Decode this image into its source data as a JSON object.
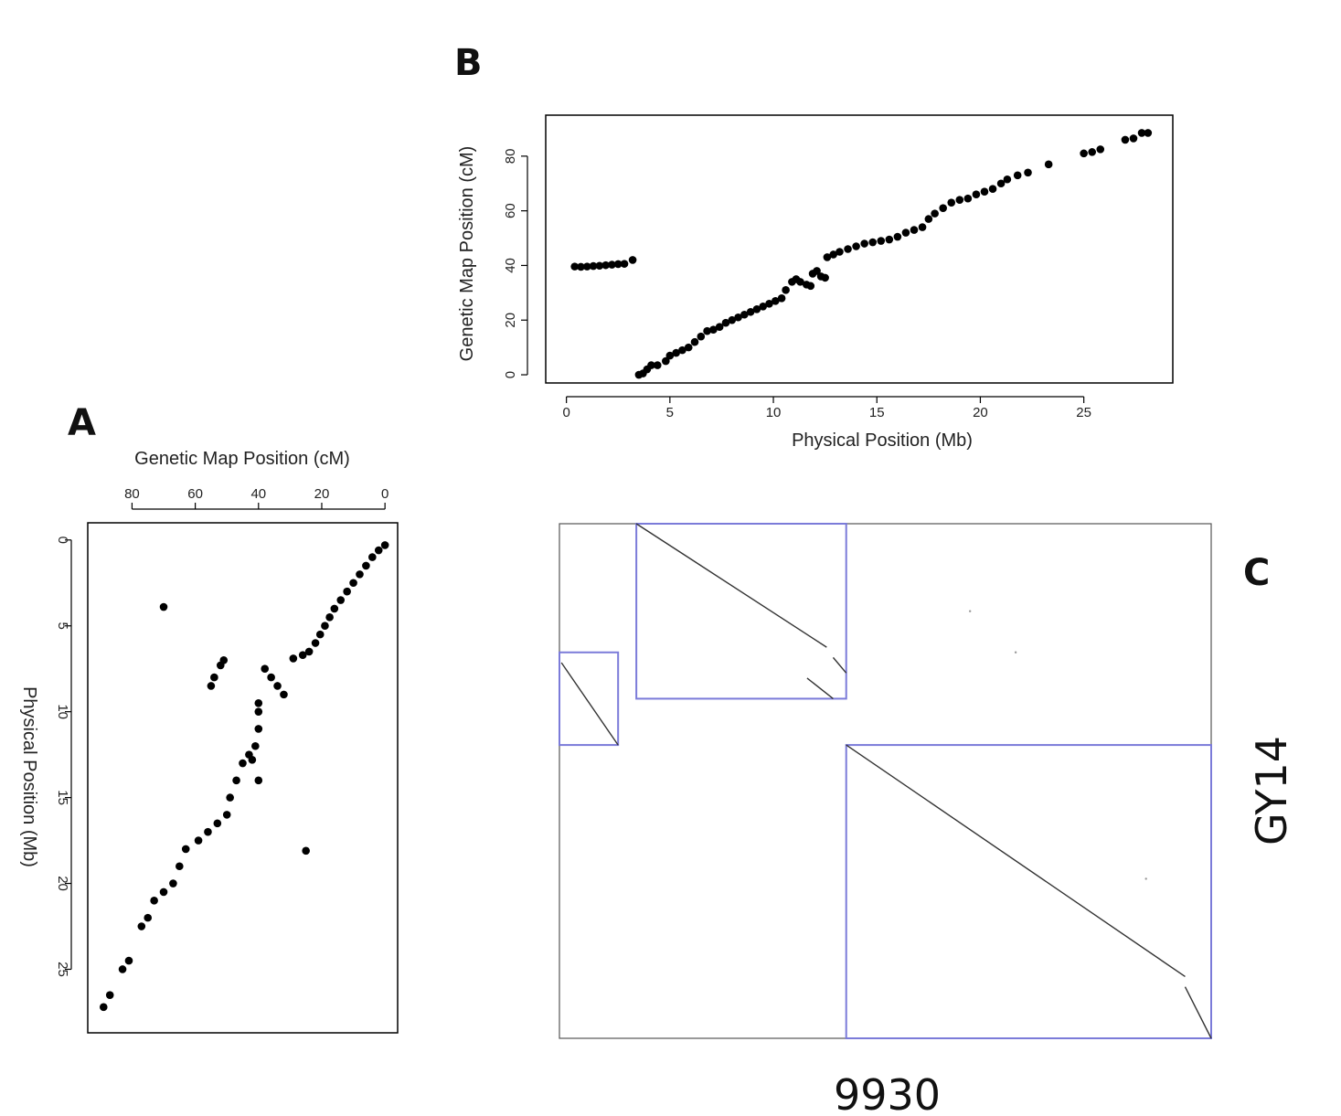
{
  "panels": {
    "a": "A",
    "b": "B",
    "c": "C"
  },
  "chart_data": [
    {
      "id": "panel-b",
      "type": "scatter",
      "xlabel": "Physical Position (Mb)",
      "ylabel": "Genetic Map Position (cM)",
      "xlim": [
        -1,
        29.3
      ],
      "ylim": [
        -3,
        95
      ],
      "xticks": [
        0,
        5,
        10,
        15,
        20,
        25
      ],
      "yticks": [
        0,
        20,
        40,
        60,
        80
      ],
      "marker_color": "#000000",
      "points": [
        [
          0.4,
          39.6
        ],
        [
          0.7,
          39.5
        ],
        [
          1.0,
          39.6
        ],
        [
          1.3,
          39.8
        ],
        [
          1.6,
          39.9
        ],
        [
          1.9,
          40.1
        ],
        [
          2.2,
          40.3
        ],
        [
          2.5,
          40.5
        ],
        [
          2.8,
          40.6
        ],
        [
          3.2,
          42.0
        ],
        [
          3.5,
          0.0
        ],
        [
          3.7,
          0.5
        ],
        [
          3.9,
          2.0
        ],
        [
          4.1,
          3.5
        ],
        [
          4.4,
          3.5
        ],
        [
          4.8,
          5.0
        ],
        [
          5.0,
          7.0
        ],
        [
          5.3,
          8.0
        ],
        [
          5.6,
          9.0
        ],
        [
          5.9,
          10.0
        ],
        [
          6.2,
          12.0
        ],
        [
          6.5,
          14.0
        ],
        [
          6.8,
          16.0
        ],
        [
          7.1,
          16.5
        ],
        [
          7.4,
          17.5
        ],
        [
          7.7,
          19.0
        ],
        [
          8.0,
          20.0
        ],
        [
          8.3,
          21.0
        ],
        [
          8.6,
          22.0
        ],
        [
          8.9,
          23.0
        ],
        [
          9.2,
          24.0
        ],
        [
          9.5,
          25.0
        ],
        [
          9.8,
          26.0
        ],
        [
          10.1,
          27.0
        ],
        [
          10.4,
          28.0
        ],
        [
          10.6,
          31.0
        ],
        [
          10.9,
          34.0
        ],
        [
          11.1,
          35.0
        ],
        [
          11.3,
          34.0
        ],
        [
          11.6,
          33.0
        ],
        [
          11.8,
          32.5
        ],
        [
          11.9,
          37.0
        ],
        [
          12.1,
          38.0
        ],
        [
          12.3,
          36.0
        ],
        [
          12.5,
          35.5
        ],
        [
          12.6,
          43.0
        ],
        [
          12.9,
          44.0
        ],
        [
          13.2,
          45.0
        ],
        [
          13.6,
          46.0
        ],
        [
          14.0,
          47.0
        ],
        [
          14.4,
          48.0
        ],
        [
          14.8,
          48.5
        ],
        [
          15.2,
          49.0
        ],
        [
          15.6,
          49.5
        ],
        [
          16.0,
          50.5
        ],
        [
          16.4,
          52.0
        ],
        [
          16.8,
          53.0
        ],
        [
          17.2,
          54.0
        ],
        [
          17.5,
          57.0
        ],
        [
          17.8,
          59.0
        ],
        [
          18.2,
          61.0
        ],
        [
          18.6,
          63.0
        ],
        [
          19.0,
          64.0
        ],
        [
          19.4,
          64.5
        ],
        [
          19.8,
          66.0
        ],
        [
          20.2,
          67.0
        ],
        [
          20.6,
          68.0
        ],
        [
          21.0,
          70.0
        ],
        [
          21.3,
          71.5
        ],
        [
          21.8,
          73.0
        ],
        [
          22.3,
          74.0
        ],
        [
          23.3,
          77.0
        ],
        [
          25.0,
          81.0
        ],
        [
          25.4,
          81.5
        ],
        [
          25.8,
          82.5
        ],
        [
          27.0,
          86.0
        ],
        [
          27.4,
          86.5
        ],
        [
          27.8,
          88.5
        ],
        [
          28.1,
          88.5
        ]
      ]
    },
    {
      "id": "panel-a",
      "type": "scatter",
      "xlabel": "Genetic Map Position (cM)",
      "ylabel": "Physical Position (Mb)",
      "x_reversed": true,
      "y_reversed": true,
      "xlim": [
        -4,
        94
      ],
      "ylim": [
        -1,
        28.7
      ],
      "xticks": [
        80,
        60,
        40,
        20,
        0
      ],
      "yticks": [
        0,
        5,
        10,
        15,
        20,
        25
      ],
      "marker_color": "#000000",
      "points": [
        [
          0.0,
          0.3
        ],
        [
          2.0,
          0.6
        ],
        [
          4.0,
          1.0
        ],
        [
          6.0,
          1.5
        ],
        [
          8.0,
          2.0
        ],
        [
          10.0,
          2.5
        ],
        [
          12.0,
          3.0
        ],
        [
          14.0,
          3.5
        ],
        [
          16.0,
          4.0
        ],
        [
          17.5,
          4.5
        ],
        [
          19.0,
          5.0
        ],
        [
          20.5,
          5.5
        ],
        [
          22.0,
          6.0
        ],
        [
          24.0,
          6.5
        ],
        [
          26.0,
          6.7
        ],
        [
          29.0,
          6.9
        ],
        [
          70.0,
          3.9
        ],
        [
          51.0,
          7.0
        ],
        [
          52.0,
          7.3
        ],
        [
          54.0,
          8.0
        ],
        [
          55.0,
          8.5
        ],
        [
          38.0,
          7.5
        ],
        [
          36.0,
          8.0
        ],
        [
          34.0,
          8.5
        ],
        [
          32.0,
          9.0
        ],
        [
          40.0,
          9.5
        ],
        [
          40.0,
          10.0
        ],
        [
          40.0,
          11.0
        ],
        [
          41.0,
          12.0
        ],
        [
          43.0,
          12.5
        ],
        [
          45.0,
          13.0
        ],
        [
          47.0,
          14.0
        ],
        [
          49.0,
          15.0
        ],
        [
          50.0,
          16.0
        ],
        [
          53.0,
          16.5
        ],
        [
          56.0,
          17.0
        ],
        [
          59.0,
          17.5
        ],
        [
          63.0,
          18.0
        ],
        [
          65.0,
          19.0
        ],
        [
          67.0,
          20.0
        ],
        [
          70.0,
          20.5
        ],
        [
          73.0,
          21.0
        ],
        [
          75.0,
          22.0
        ],
        [
          77.0,
          22.5
        ],
        [
          81.0,
          24.5
        ],
        [
          83.0,
          25.0
        ],
        [
          87.0,
          26.5
        ],
        [
          89.0,
          27.2
        ],
        [
          42.0,
          12.8
        ],
        [
          40.0,
          14.0
        ],
        [
          25.0,
          18.1
        ]
      ]
    },
    {
      "id": "panel-c",
      "type": "scatter",
      "subtype": "dot-plot",
      "xlabel": "9930",
      "ylabel": "GY14",
      "box_color": "#7b7bd9",
      "line_color": "#333333",
      "boxes": [
        [
          0.0,
          0.25,
          0.09,
          0.43
        ],
        [
          0.118,
          0.0,
          0.44,
          0.34
        ],
        [
          0.44,
          0.43,
          1.0,
          1.0
        ]
      ],
      "diagonal_segments": [
        [
          0.003,
          0.27,
          0.09,
          0.43
        ],
        [
          0.118,
          0.0,
          0.41,
          0.24
        ],
        [
          0.42,
          0.26,
          0.44,
          0.29
        ],
        [
          0.38,
          0.3,
          0.42,
          0.34
        ],
        [
          0.44,
          0.43,
          0.96,
          0.88
        ],
        [
          0.96,
          0.9,
          1.0,
          1.0
        ]
      ],
      "stray_points": [
        [
          0.63,
          0.17
        ],
        [
          0.7,
          0.25
        ],
        [
          0.9,
          0.69
        ]
      ]
    }
  ]
}
